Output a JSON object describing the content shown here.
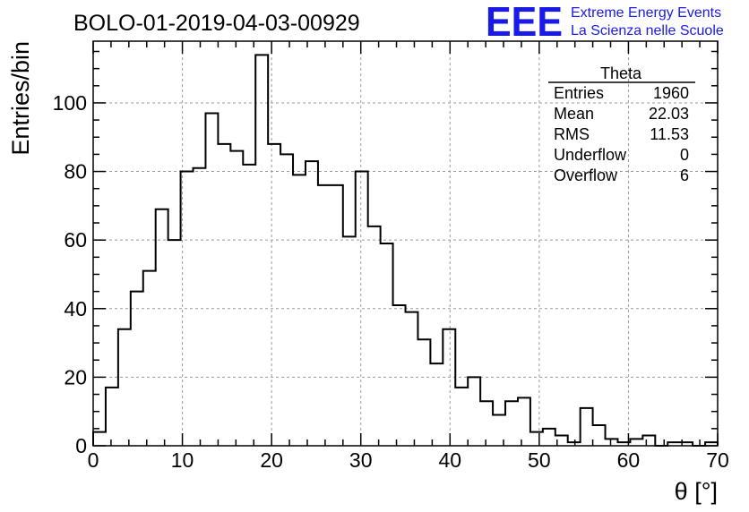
{
  "chart_data": {
    "type": "histogram",
    "title": "BOLO-01-2019-04-03-00929",
    "xlabel": "θ [°]",
    "ylabel": "Entries/bin",
    "xlim": [
      0,
      70
    ],
    "ylim": [
      0,
      118
    ],
    "bin_width": 1.4,
    "bin_start": 0,
    "xticks": [
      0,
      10,
      20,
      30,
      40,
      50,
      60,
      70
    ],
    "yticks": [
      0,
      20,
      40,
      60,
      80,
      100
    ],
    "grid": true,
    "values": [
      4,
      17,
      34,
      45,
      51,
      69,
      60,
      80,
      81,
      97,
      88,
      86,
      82,
      114,
      88,
      85,
      79,
      83,
      76,
      76,
      61,
      80,
      64,
      59,
      41,
      39,
      31,
      24,
      34,
      17,
      20,
      13,
      9,
      13,
      14,
      4,
      5,
      3,
      1,
      11,
      6,
      2,
      1,
      2,
      3,
      0,
      1,
      1,
      0,
      1
    ]
  },
  "stats": {
    "title": "Theta",
    "rows": [
      {
        "label": "Entries",
        "value": "1960"
      },
      {
        "label": "Mean",
        "value": "22.03"
      },
      {
        "label": "RMS",
        "value": "11.53"
      },
      {
        "label": "Underflow",
        "value": "0"
      },
      {
        "label": "Overflow",
        "value": "6"
      }
    ]
  },
  "logo": {
    "text": "EEE",
    "line1": "Extreme Energy Events",
    "line2": "La Scienza nelle Scuole",
    "color": "#1a1ae6"
  },
  "colors": {
    "line": "#000000",
    "grid": "#9a9a9a"
  }
}
